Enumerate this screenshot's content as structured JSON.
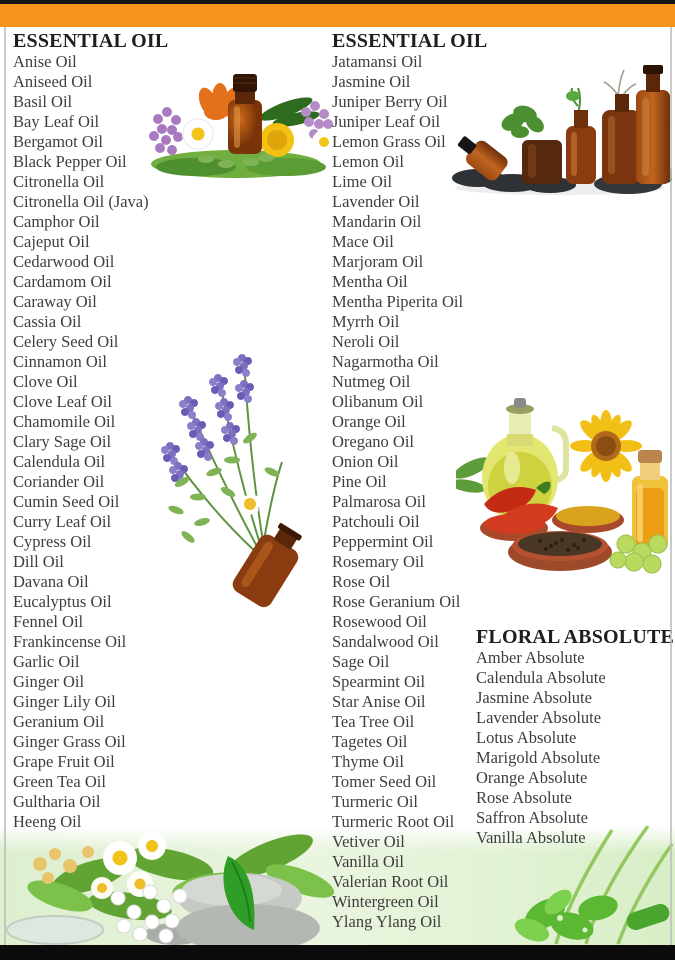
{
  "colors": {
    "top_strip": "#151515",
    "accent_orange": "#F7941E",
    "bottom_bar": "#0B0B0B",
    "edge_line": "#BDBDBD",
    "heading_text": "#1E1E1E",
    "item_text": "#3E3E3E"
  },
  "columns": {
    "left": {
      "title": "ESSENTIAL OIL",
      "items": [
        "Anise Oil",
        "Aniseed Oil",
        "Basil Oil",
        "Bay Leaf Oil",
        "Bergamot Oil",
        "Black Pepper Oil",
        "Citronella Oil",
        "Citronella Oil (Java)",
        "Camphor Oil",
        "Cajeput Oil",
        "Cedarwood Oil",
        "Cardamom Oil",
        "Caraway Oil",
        "Cassia Oil",
        "Celery Seed Oil",
        "Cinnamon Oil",
        "Clove Oil",
        "Clove Leaf Oil",
        "Chamomile Oil",
        "Clary Sage Oil",
        "Calendula Oil",
        "Coriander Oil",
        "Cumin Seed Oil",
        "Curry Leaf Oil",
        "Cypress Oil",
        "Dill Oil",
        "Davana Oil",
        "Eucalyptus Oil",
        "Fennel Oil",
        "Frankincense Oil",
        "Garlic Oil",
        "Ginger Oil",
        "Ginger Lily Oil",
        "Geranium Oil",
        "Ginger Grass Oil",
        "Grape Fruit Oil",
        "Green Tea Oil",
        "Gultharia Oil",
        "Heeng Oil"
      ]
    },
    "middle": {
      "title": "ESSENTIAL OIL",
      "items": [
        "Jatamansi Oil",
        "Jasmine Oil",
        "Juniper Berry Oil",
        "Juniper Leaf Oil",
        "Lemon Grass Oil",
        "Lemon Oil",
        "Lime Oil",
        "Lavender Oil",
        "Mandarin Oil",
        "Mace Oil",
        "Marjoram Oil",
        "Mentha Oil",
        "Mentha Piperita Oil",
        "Myrrh Oil",
        "Neroli Oil",
        "Nagarmotha Oil",
        "Nutmeg Oil",
        "Olibanum Oil",
        "Orange Oil",
        "Oregano Oil",
        "Onion Oil",
        "Pine Oil",
        "Palmarosa Oil",
        "Patchouli Oil",
        "Peppermint Oil",
        "Rosemary Oil",
        "Rose Oil",
        "Rose Geranium Oil",
        "Rosewood Oil",
        "Sandalwood Oil",
        "Sage Oil",
        "Spearmint Oil",
        "Star Anise Oil",
        "Tea Tree Oil",
        "Tagetes Oil",
        "Thyme Oil",
        "Tomer Seed Oil",
        "Turmeric Oil",
        "Turmeric Root Oil",
        "Vetiver Oil",
        "Vanilla Oil",
        "Valerian Root Oil",
        "Wintergreen Oil",
        "Ylang Ylang Oil"
      ]
    },
    "right": {
      "title": "FLORAL ABSOLUTES",
      "items": [
        "Amber Absolute",
        "Calendula Absolute",
        "Jasmine Absolute",
        "Lavender Absolute",
        "Lotus Absolute",
        "Marigold Absolute",
        "Orange Absolute",
        "Rose Absolute",
        "Saffron Absolute",
        "Vanilla Absolute"
      ]
    }
  },
  "images": {
    "top_left": "flowers-with-essential-oil-bottle-photo",
    "top_right": "amber-oil-bottles-with-mint-leaves-and-black-stones-photo",
    "middle_left": "lavender-herbs-bouquet-in-amber-bottle-photo",
    "middle_right": "olive-oil-jug-sunflower-chili-spice-bowls-photo",
    "bottom_band": "chamomile-pills-zen-stones-green-leaves-footer-photo"
  }
}
